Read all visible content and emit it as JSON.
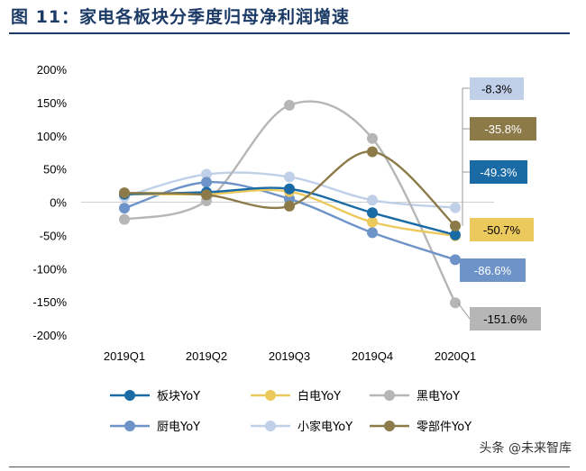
{
  "title": "图 11：家电各板块分季度归母净利润增速",
  "watermark": "头条 @未来智库",
  "chart_data": {
    "type": "line",
    "categories": [
      "2019Q1",
      "2019Q2",
      "2019Q3",
      "2019Q4",
      "2020Q1"
    ],
    "ylim": [
      -200,
      200
    ],
    "yticks": [
      -200,
      -150,
      -100,
      -50,
      0,
      50,
      100,
      150,
      200
    ],
    "ytick_labels": [
      "-200%",
      "-150%",
      "-100%",
      "-50%",
      "0%",
      "50%",
      "100%",
      "150%",
      "200%"
    ],
    "grid": false,
    "legend_position": "bottom",
    "series": [
      {
        "name": "板块YoY",
        "color": "#1a6aa6",
        "values": [
          12,
          15,
          20,
          -16,
          -49.3
        ],
        "label": "-49.3%"
      },
      {
        "name": "白电YoY",
        "color": "#ecc95c",
        "values": [
          12,
          12,
          16,
          -30,
          -50.7
        ],
        "label": "-50.7%"
      },
      {
        "name": "黑电YoY",
        "color": "#b6b6b6",
        "values": [
          -26,
          2,
          146,
          96,
          -151.6
        ],
        "label": "-151.6%"
      },
      {
        "name": "厨电YoY",
        "color": "#6e93c8",
        "values": [
          -9,
          30,
          5,
          -46,
          -86.6
        ],
        "label": "-86.6%"
      },
      {
        "name": "小家电YoY",
        "color": "#bfd0e8",
        "values": [
          8,
          42,
          38,
          3,
          -8.3
        ],
        "label": "-8.3%"
      },
      {
        "name": "零部件YoY",
        "color": "#8c7a48",
        "values": [
          14,
          11,
          -6,
          76,
          -35.8
        ],
        "label": "-35.8%"
      }
    ]
  }
}
